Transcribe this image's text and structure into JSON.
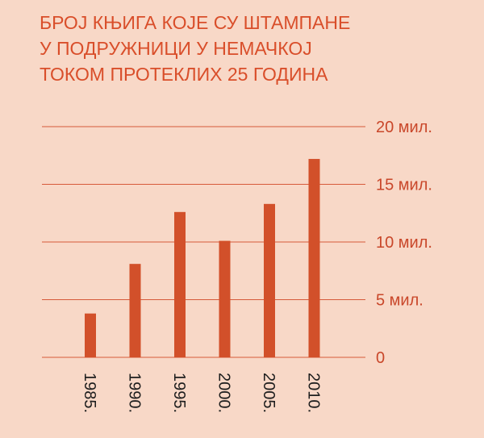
{
  "chart_data": {
    "type": "bar",
    "title_lines": [
      "БРОЈ КЊИГА КОЈЕ СУ ШТАМПАНЕ",
      "У ПОДРУЖНИЦИ У НЕМАЧКОЈ",
      "ТОКОМ ПРОТЕКЛИХ 25 ГОДИНА"
    ],
    "categories": [
      "1985.",
      "1990.",
      "1995.",
      "2000.",
      "2005.",
      "2010."
    ],
    "values": [
      3.8,
      8.1,
      12.6,
      10.1,
      13.3,
      17.2
    ],
    "unit": "мил.",
    "ylim": [
      0,
      20
    ],
    "y_ticks": [
      {
        "value": 20,
        "label": "20 мил."
      },
      {
        "value": 15,
        "label": "15 мил."
      },
      {
        "value": 10,
        "label": "10 мил."
      },
      {
        "value": 5,
        "label": "5 мил."
      },
      {
        "value": 0,
        "label": "0"
      }
    ],
    "grid": true,
    "colors": {
      "background": "#f8d8c7",
      "bar": "#d2502a",
      "title": "#d94e2a",
      "grid": "#d65a3a",
      "tick_label": "#c9472a",
      "category_label": "#1e1e1e"
    }
  }
}
